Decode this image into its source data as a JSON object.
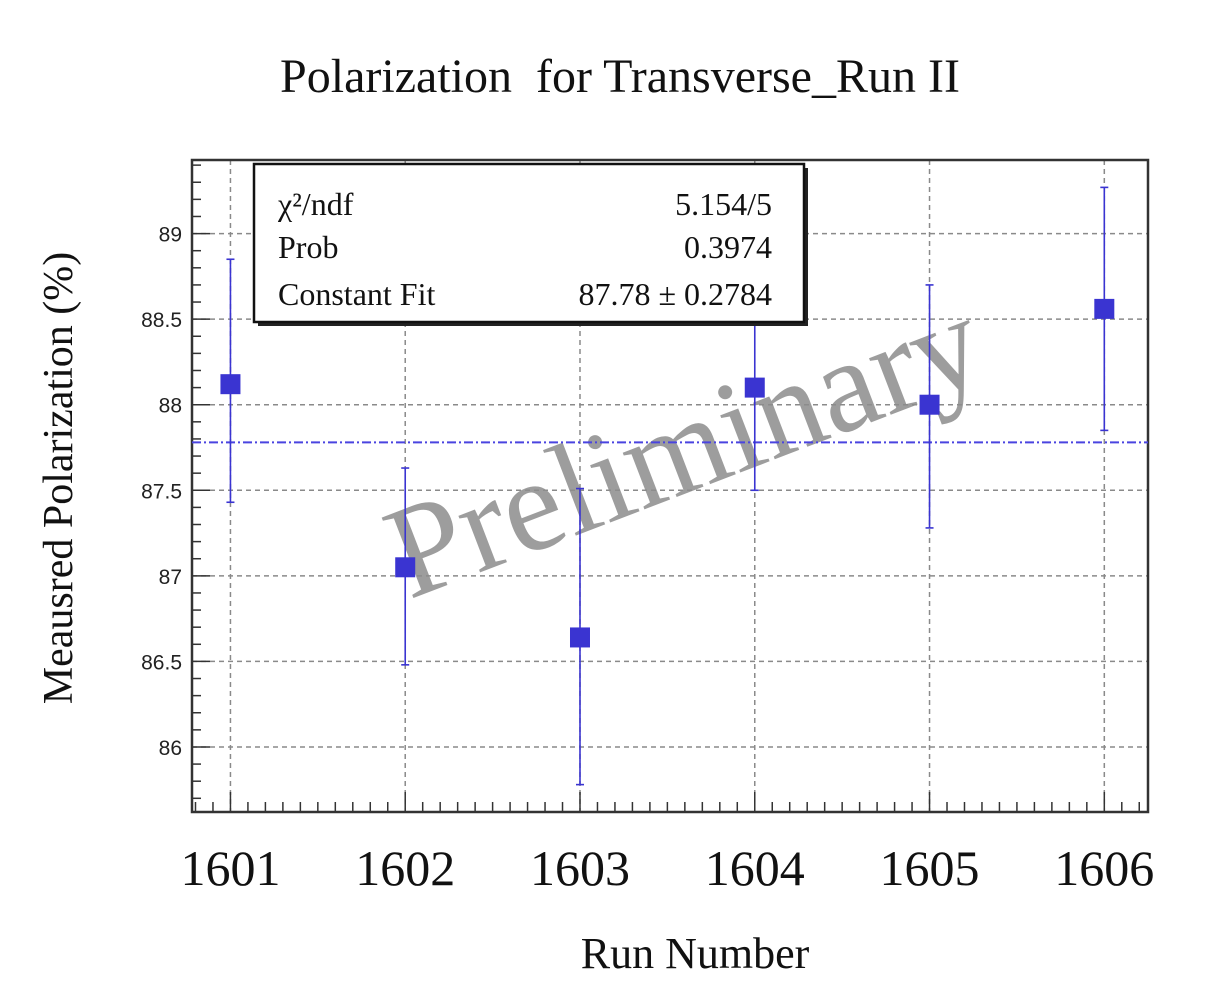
{
  "chart_data": {
    "type": "scatter",
    "title": "Polarization  for Transverse_Run II",
    "xlabel": "Run Number",
    "ylabel": "Meausred Polarization (%)",
    "x": [
      1601,
      1602,
      1603,
      1604,
      1605,
      1606
    ],
    "x_tick_labels": [
      "1601",
      "1602",
      "1603",
      "1604",
      "1605",
      "1606"
    ],
    "xlim": [
      1600.78,
      1606.25
    ],
    "ylim": [
      85.62,
      89.43
    ],
    "y_ticks": [
      86,
      86.5,
      87,
      87.5,
      88,
      88.5,
      89
    ],
    "y_tick_labels": [
      "86",
      "86.5",
      "87",
      "87.5",
      "88",
      "88.5",
      "89"
    ],
    "grid": true,
    "series": [
      {
        "values": [
          88.12,
          87.05,
          86.64,
          88.1,
          88.0,
          88.56
        ],
        "err_low": [
          87.43,
          86.48,
          85.78,
          87.5,
          87.28,
          87.85
        ],
        "err_high": [
          88.85,
          87.63,
          87.51,
          88.7,
          88.7,
          89.27
        ],
        "color": "#3a34d1",
        "marker": "square"
      }
    ],
    "fit": {
      "type": "constant",
      "value": 87.78,
      "color": "#4a44e0",
      "style": "dashed"
    },
    "stats_box": {
      "rows": [
        {
          "label": "χ²/ndf",
          "value": "5.154/5"
        },
        {
          "label": "Prob",
          "value": "0.3974"
        },
        {
          "label": "Constant Fit",
          "value": "87.78 ± 0.2784"
        }
      ],
      "placement": "top-left"
    },
    "watermark": {
      "text": "Preliminary",
      "color": "#8c8c8c"
    }
  }
}
